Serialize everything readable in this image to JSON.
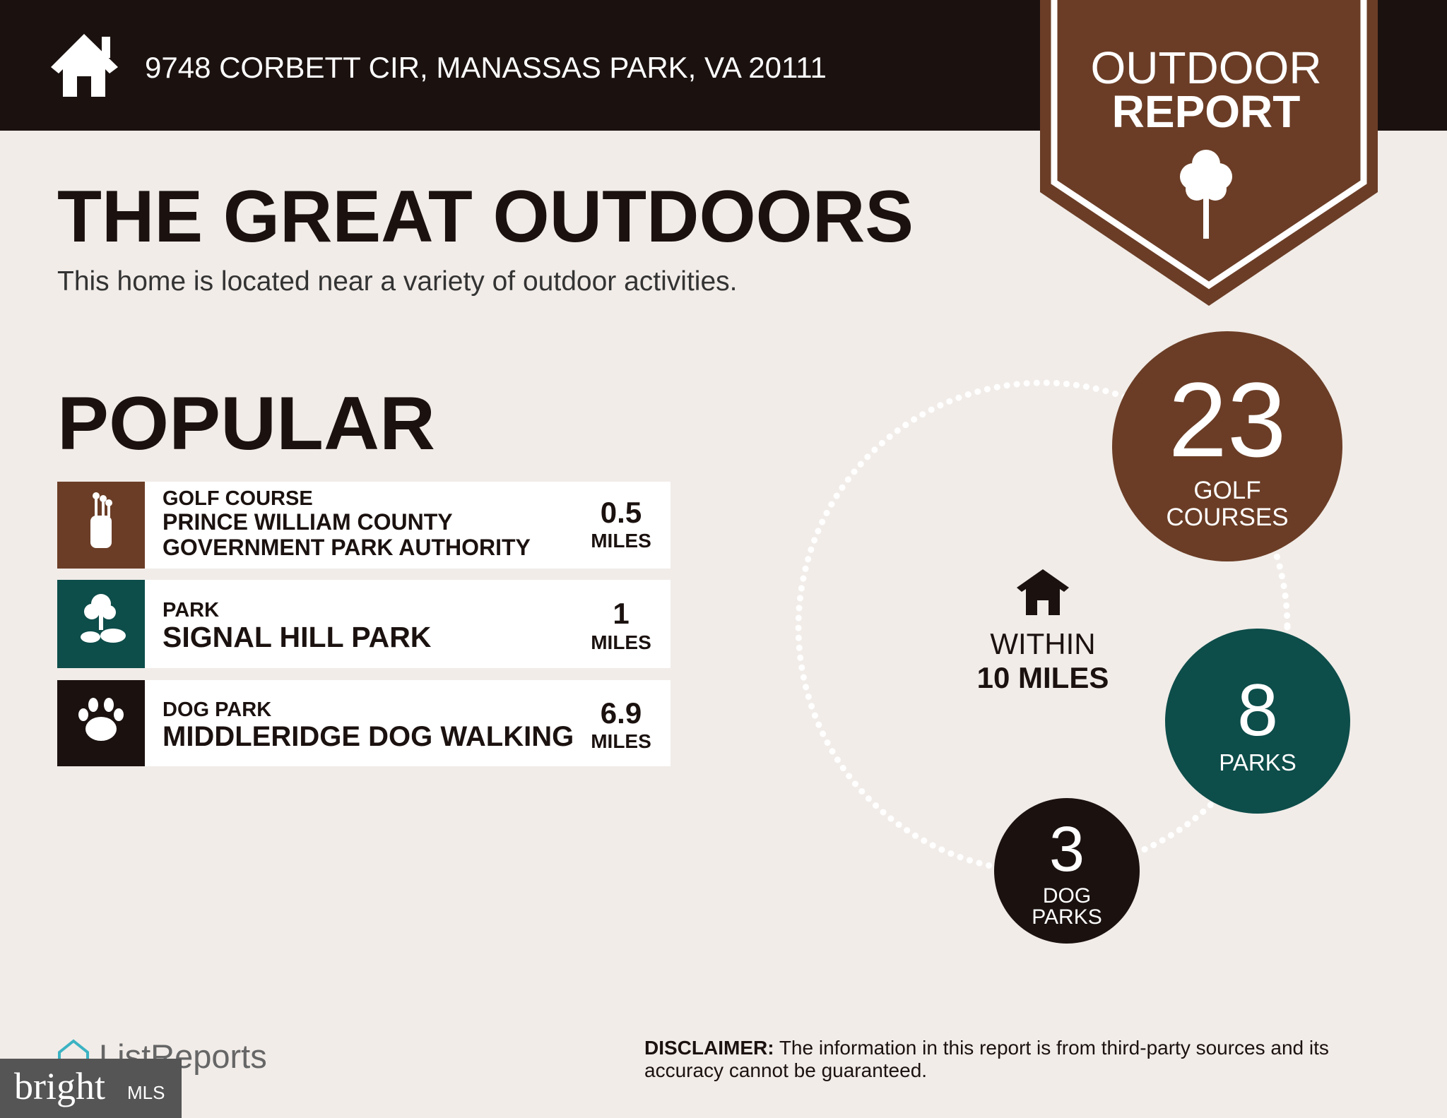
{
  "header": {
    "address": "9748 CORBETT CIR, MANASSAS PARK, VA 20111"
  },
  "badge": {
    "line1": "OUTDOOR",
    "line2": "REPORT"
  },
  "title": "THE GREAT OUTDOORS",
  "subtitle": "This home is located near a variety of outdoor activities.",
  "popular": {
    "heading": "POPULAR",
    "items": [
      {
        "category": "GOLF COURSE",
        "name": [
          "PRINCE WILLIAM COUNTY",
          "GOVERNMENT PARK AUTHORITY"
        ],
        "distance": "0.5",
        "unit": "MILES"
      },
      {
        "category": "PARK",
        "name": [
          "SIGNAL HILL PARK"
        ],
        "distance": "1",
        "unit": "MILES"
      },
      {
        "category": "DOG PARK",
        "name": [
          "MIDDLERIDGE DOG WALKING"
        ],
        "distance": "6.9",
        "unit": "MILES"
      }
    ]
  },
  "radius": {
    "within": "WITHIN",
    "distance": "10 MILES"
  },
  "counts": [
    {
      "number": "23",
      "label": [
        "GOLF",
        "COURSES"
      ]
    },
    {
      "number": "8",
      "label": [
        "PARKS"
      ]
    },
    {
      "number": "3",
      "label": [
        "DOG",
        "PARKS"
      ]
    }
  ],
  "disclaimer": {
    "label": "DISCLAIMER:",
    "text": "The information in this report is from third-party sources and its accuracy cannot be guaranteed."
  },
  "footer": {
    "logo": "ListReports",
    "watermark": "bright",
    "watermark_mls": "MLS"
  }
}
